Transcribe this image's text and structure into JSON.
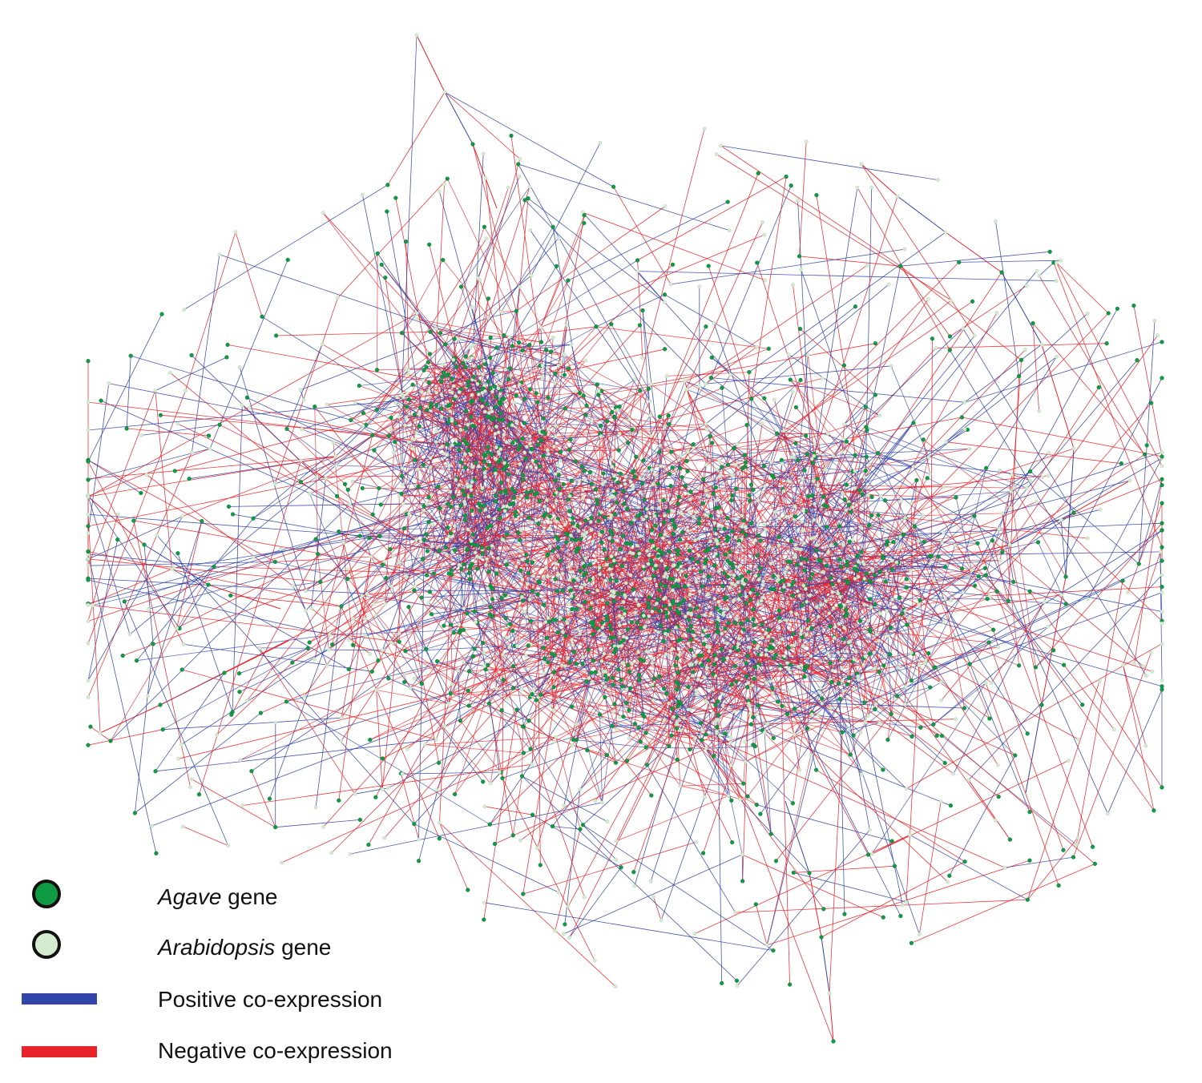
{
  "colors": {
    "background": "#ffffff",
    "positive_edge": "#3345a8",
    "negative_edge": "#e8232a",
    "agave_node": "#0f9a43",
    "arabidopsis_node": "#d3ecd0",
    "node_outline": "#111111"
  },
  "legend": {
    "items": [
      {
        "kind": "node",
        "color_key": "agave_node",
        "italic": "Agave",
        "text": " gene"
      },
      {
        "kind": "node",
        "color_key": "arabidopsis_node",
        "italic": "Arabidopsis",
        "text": " gene"
      },
      {
        "kind": "line",
        "color_key": "positive_edge",
        "italic": "",
        "text": "Positive co-expression"
      },
      {
        "kind": "line",
        "color_key": "negative_edge",
        "italic": "",
        "text": "Negative co-expression"
      }
    ]
  }
}
